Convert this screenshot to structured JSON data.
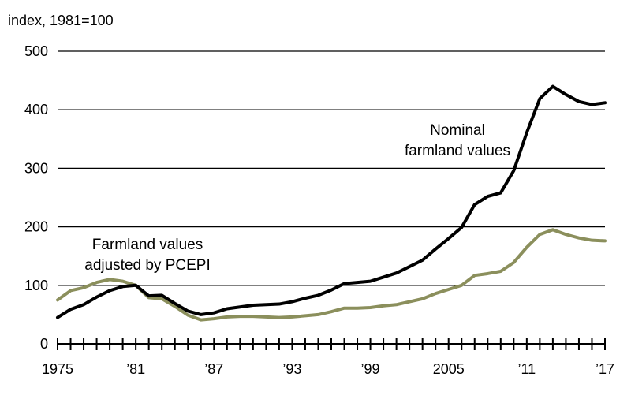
{
  "chart_data": {
    "type": "line",
    "ylabel": "index, 1981=100",
    "ylim": [
      0,
      500
    ],
    "xlim": [
      1975,
      2017
    ],
    "grid": true,
    "yticks": [
      0,
      100,
      200,
      300,
      400,
      500
    ],
    "ytick_labels": [
      "0",
      "100",
      "200",
      "300",
      "400",
      "500"
    ],
    "xticks": [
      1975,
      1981,
      1987,
      1993,
      1999,
      2005,
      2011,
      2017
    ],
    "xtick_labels": [
      "1975",
      "’81",
      "’87",
      "’93",
      "’99",
      "2005",
      "’11",
      "’17"
    ],
    "x": [
      1975,
      1976,
      1977,
      1978,
      1979,
      1980,
      1981,
      1982,
      1983,
      1984,
      1985,
      1986,
      1987,
      1988,
      1989,
      1990,
      1991,
      1992,
      1993,
      1994,
      1995,
      1996,
      1997,
      1998,
      1999,
      2000,
      2001,
      2002,
      2003,
      2004,
      2005,
      2006,
      2007,
      2008,
      2009,
      2010,
      2011,
      2012,
      2013,
      2014,
      2015,
      2016,
      2017
    ],
    "series": [
      {
        "name": "Nominal farmland values",
        "label_lines": [
          "Nominal",
          "farmland values"
        ],
        "color": "#000000",
        "values": [
          45,
          59,
          67,
          80,
          91,
          98,
          100,
          82,
          83,
          69,
          56,
          50,
          53,
          60,
          63,
          66,
          67,
          68,
          72,
          78,
          83,
          92,
          103,
          105,
          107,
          114,
          121,
          132,
          143,
          162,
          180,
          199,
          238,
          252,
          258,
          296,
          361,
          419,
          440,
          426,
          414,
          409,
          412
        ]
      },
      {
        "name": "Farmland values adjusted by PCEPI",
        "label_lines": [
          "Farmland values",
          "adjusted by PCEPI"
        ],
        "color": "#8b8f5c",
        "values": [
          75,
          91,
          96,
          105,
          110,
          107,
          100,
          79,
          77,
          64,
          49,
          41,
          43,
          46,
          47,
          47,
          46,
          45,
          46,
          48,
          50,
          55,
          61,
          61,
          62,
          65,
          67,
          72,
          77,
          86,
          93,
          100,
          117,
          120,
          124,
          139,
          165,
          187,
          195,
          187,
          181,
          177,
          176
        ]
      }
    ]
  }
}
